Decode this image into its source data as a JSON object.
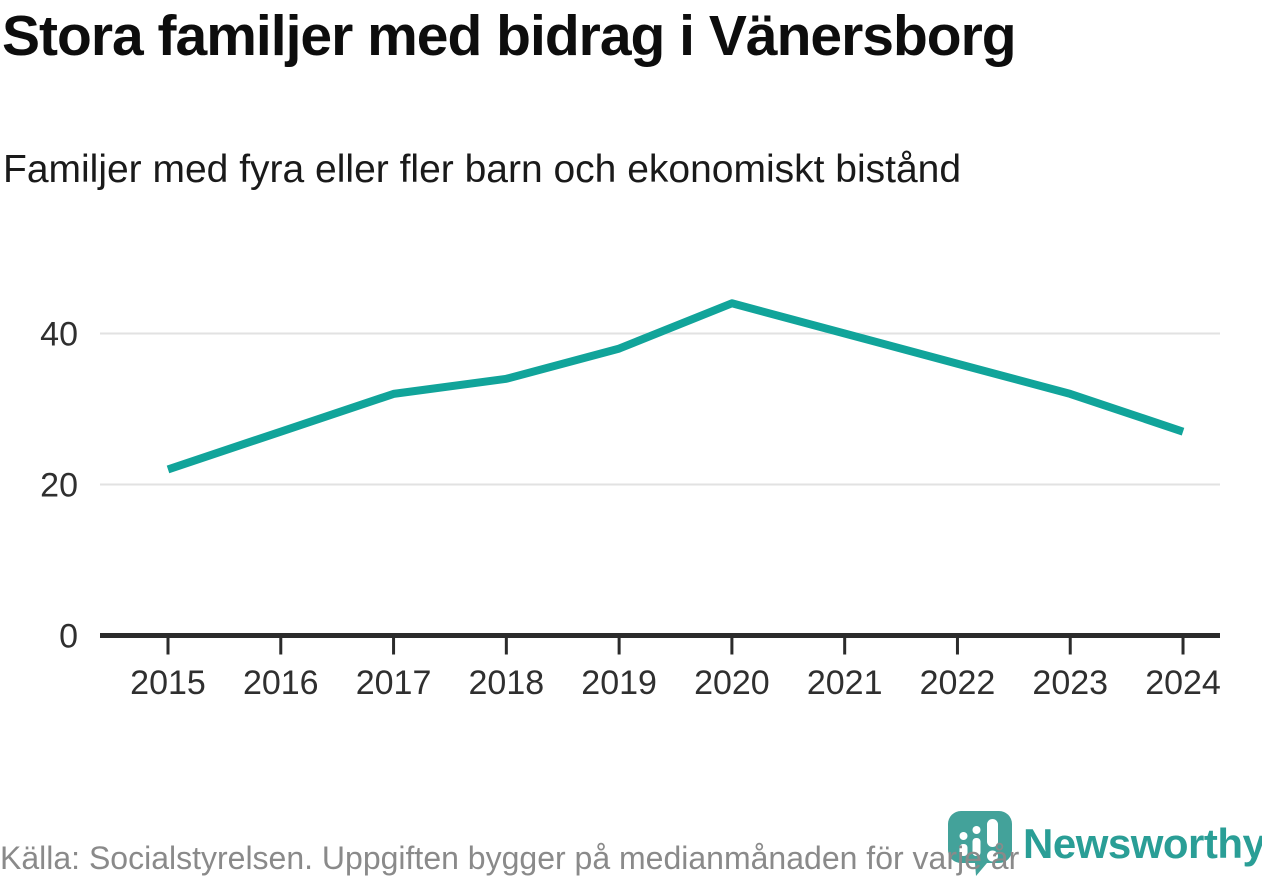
{
  "header": {
    "title": "Stora familjer med bidrag i Vänersborg",
    "subtitle": "Familjer med fyra eller fler barn och ekonomiskt bistånd"
  },
  "chart_data": {
    "type": "line",
    "title": "Stora familjer med bidrag i Vänersborg",
    "subtitle": "Familjer med fyra eller fler barn och ekonomiskt bistånd",
    "x": [
      2015,
      2016,
      2017,
      2018,
      2019,
      2020,
      2021,
      2022,
      2023,
      2024
    ],
    "values": [
      22,
      27,
      32,
      34,
      38,
      44,
      40,
      36,
      32,
      27
    ],
    "series_name": "Familjer med fyra eller fler barn och ekonomiskt bistånd",
    "xlabel": "",
    "ylabel": "",
    "yticks": [
      0,
      20,
      40
    ],
    "ylim": [
      0,
      47
    ],
    "grid": "horizontal",
    "legend": "none",
    "colors": {
      "line": "#11a49a",
      "axis": "#2b2b2b",
      "gridline": "#e2e2e2",
      "tick_label": "#2f2f2f"
    }
  },
  "footer": {
    "source": "Källa: Socialstyrelsen. Uppgiften bygger på medianmånaden för varje år",
    "brand": "Newsworthy"
  }
}
